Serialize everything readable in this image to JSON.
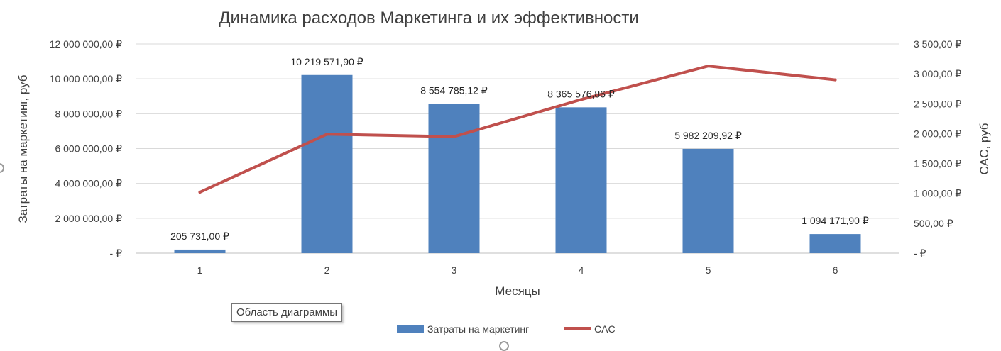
{
  "chart_data": {
    "type": "bar+line",
    "title": "Динамика расходов Маркетинга и их эффективности",
    "categories": [
      "1",
      "2",
      "3",
      "4",
      "5",
      "6"
    ],
    "xlabel": "Месяцы",
    "ylabel_left": "Затраты на маркетинг, руб",
    "ylabel_right": "CAC, руб",
    "ylim_left": [
      0,
      12000000
    ],
    "ylim_right": [
      0,
      3500
    ],
    "left_ticks": [
      0,
      2000000,
      4000000,
      6000000,
      8000000,
      10000000,
      12000000
    ],
    "left_tick_labels": [
      "-  ₽",
      "2 000 000,00 ₽",
      "4 000 000,00 ₽",
      "6 000 000,00 ₽",
      "8 000 000,00 ₽",
      "10 000 000,00 ₽",
      "12 000 000,00 ₽"
    ],
    "right_ticks": [
      0,
      500,
      1000,
      1500,
      2000,
      2500,
      3000,
      3500
    ],
    "right_tick_labels": [
      "-  ₽",
      "500,00 ₽",
      "1 000,00 ₽",
      "1 500,00 ₽",
      "2 000,00 ₽",
      "2 500,00 ₽",
      "3 000,00 ₽",
      "3 500,00 ₽"
    ],
    "grid": true,
    "legend_position": "bottom",
    "series": [
      {
        "name": "Затраты на маркетинг",
        "type": "bar",
        "axis": "left",
        "color": "#4f81bd",
        "values": [
          205731.0,
          10219571.9,
          8554785.12,
          8365576.86,
          5982209.92,
          1094171.9
        ],
        "data_labels": [
          "205 731,00 ₽",
          "10 219 571,90 ₽",
          "8 554 785,12 ₽",
          "8 365 576,86 ₽",
          "5 982 209,92 ₽",
          "1 094 171,90 ₽"
        ]
      },
      {
        "name": "CAC",
        "type": "line",
        "axis": "right",
        "color": "#c0504d",
        "values": [
          1020,
          1990,
          1950,
          2570,
          3130,
          2900
        ]
      }
    ]
  },
  "tooltip": {
    "text": "Область диаграммы"
  }
}
